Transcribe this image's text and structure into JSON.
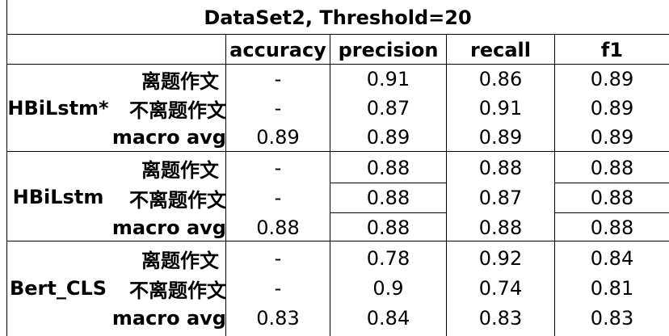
{
  "table": {
    "title": "DataSet2, Threshold=20",
    "headers": [
      "accuracy",
      "precision",
      "recall",
      "f1"
    ],
    "models": [
      {
        "name": "HBiLstm*",
        "rows": [
          {
            "label": "离题作文",
            "accuracy": "-",
            "precision": "0.91",
            "recall": "0.86",
            "f1": "0.89"
          },
          {
            "label": "不离题作文",
            "accuracy": "-",
            "precision": "0.87",
            "recall": "0.91",
            "f1": "0.89"
          },
          {
            "label": "macro avg",
            "accuracy": "0.89",
            "precision": "0.89",
            "recall": "0.89",
            "f1": "0.89"
          }
        ]
      },
      {
        "name": "HBiLstm",
        "rows": [
          {
            "label": "离题作文",
            "accuracy": "-",
            "precision": "0.88",
            "recall": "0.88",
            "f1": "0.88"
          },
          {
            "label": "不离题作文",
            "accuracy": "-",
            "precision": "0.88",
            "recall": "0.87",
            "f1": "0.88"
          },
          {
            "label": "macro avg",
            "accuracy": "0.88",
            "precision": "0.88",
            "recall": "0.88",
            "f1": "0.88"
          }
        ]
      },
      {
        "name": "Bert_CLS",
        "rows": [
          {
            "label": "离题作文",
            "accuracy": "-",
            "precision": "0.78",
            "recall": "0.92",
            "f1": "0.84"
          },
          {
            "label": "不离题作文",
            "accuracy": "-",
            "precision": "0.9",
            "recall": "0.74",
            "f1": "0.81"
          },
          {
            "label": "macro avg",
            "accuracy": "0.83",
            "precision": "0.84",
            "recall": "0.83",
            "f1": "0.83"
          }
        ]
      }
    ]
  }
}
